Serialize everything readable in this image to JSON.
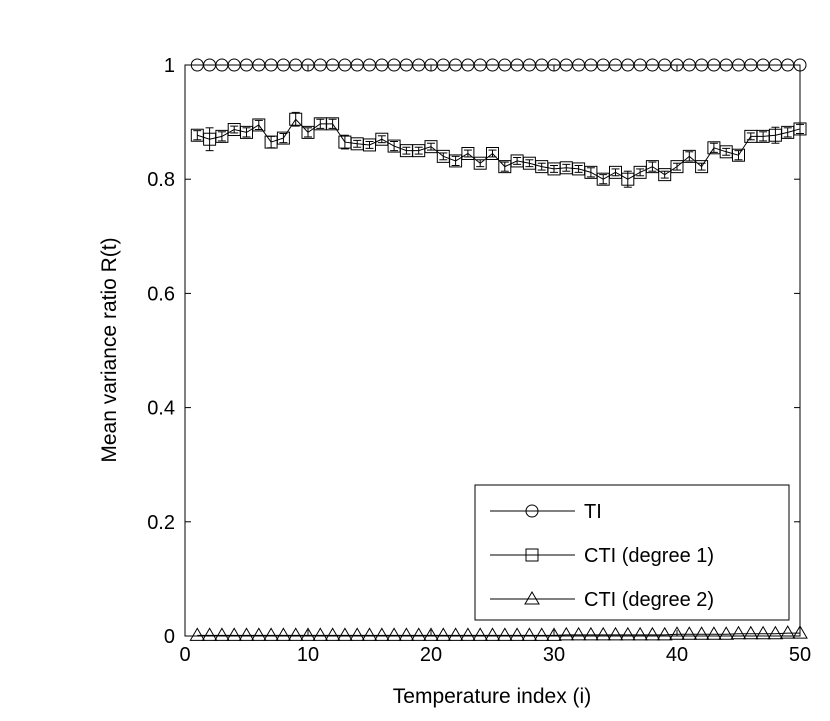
{
  "chart_data": {
    "type": "line",
    "title": "",
    "xlabel": "Temperature index (i)",
    "ylabel": "Mean variance ratio R(t)",
    "xlim": [
      0,
      50
    ],
    "ylim": [
      0,
      1
    ],
    "xticks": [
      "0",
      "10",
      "20",
      "30",
      "40",
      "50"
    ],
    "yticks": [
      "0",
      "0.2",
      "0.4",
      "0.6",
      "0.8",
      "1"
    ],
    "grid": false,
    "legend_position": "bottom-right",
    "x": [
      1,
      2,
      3,
      4,
      5,
      6,
      7,
      8,
      9,
      10,
      11,
      12,
      13,
      14,
      15,
      16,
      17,
      18,
      19,
      20,
      21,
      22,
      23,
      24,
      25,
      26,
      27,
      28,
      29,
      30,
      31,
      32,
      33,
      34,
      35,
      36,
      37,
      38,
      39,
      40,
      41,
      42,
      43,
      44,
      45,
      46,
      47,
      48,
      49,
      50
    ],
    "series": [
      {
        "name": "TI",
        "marker": "circle",
        "values": [
          1,
          1,
          1,
          1,
          1,
          1,
          1,
          1,
          1,
          1,
          1,
          1,
          1,
          1,
          1,
          1,
          1,
          1,
          1,
          1,
          1,
          1,
          1,
          1,
          1,
          1,
          1,
          1,
          1,
          1,
          1,
          1,
          1,
          1,
          1,
          1,
          1,
          1,
          1,
          1,
          1,
          1,
          1,
          1,
          1,
          1,
          1,
          1,
          1,
          1
        ]
      },
      {
        "name": "CTI (degree 1)",
        "marker": "square",
        "values": [
          0.877,
          0.87,
          0.875,
          0.887,
          0.882,
          0.895,
          0.865,
          0.872,
          0.905,
          0.882,
          0.897,
          0.897,
          0.865,
          0.862,
          0.86,
          0.87,
          0.858,
          0.85,
          0.85,
          0.857,
          0.84,
          0.832,
          0.845,
          0.828,
          0.845,
          0.822,
          0.832,
          0.828,
          0.822,
          0.818,
          0.82,
          0.818,
          0.812,
          0.8,
          0.812,
          0.8,
          0.812,
          0.822,
          0.808,
          0.822,
          0.84,
          0.822,
          0.855,
          0.848,
          0.842,
          0.875,
          0.875,
          0.877,
          0.882,
          0.888
        ],
        "error": [
          0.008,
          0.02,
          0.008,
          0.006,
          0.008,
          0.008,
          0.01,
          0.008,
          0.012,
          0.008,
          0.008,
          0.008,
          0.012,
          0.006,
          0.006,
          0.006,
          0.008,
          0.006,
          0.006,
          0.006,
          0.006,
          0.008,
          0.006,
          0.006,
          0.006,
          0.008,
          0.006,
          0.006,
          0.006,
          0.006,
          0.006,
          0.006,
          0.008,
          0.008,
          0.006,
          0.014,
          0.006,
          0.008,
          0.006,
          0.006,
          0.008,
          0.006,
          0.008,
          0.006,
          0.008,
          0.006,
          0.008,
          0.014,
          0.008,
          0.008
        ]
      },
      {
        "name": "CTI (degree 2)",
        "marker": "triangle",
        "values": [
          0.001,
          0.001,
          0.001,
          0.001,
          0.001,
          0.001,
          0.001,
          0.001,
          0.001,
          0.001,
          0.001,
          0.001,
          0.001,
          0.001,
          0.001,
          0.001,
          0.001,
          0.001,
          0.001,
          0.001,
          0.001,
          0.001,
          0.001,
          0.001,
          0.001,
          0.001,
          0.001,
          0.001,
          0.001,
          0.001,
          0.002,
          0.002,
          0.002,
          0.002,
          0.002,
          0.002,
          0.002,
          0.002,
          0.002,
          0.003,
          0.003,
          0.003,
          0.003,
          0.003,
          0.004,
          0.004,
          0.004,
          0.004,
          0.005,
          0.005
        ]
      }
    ]
  }
}
